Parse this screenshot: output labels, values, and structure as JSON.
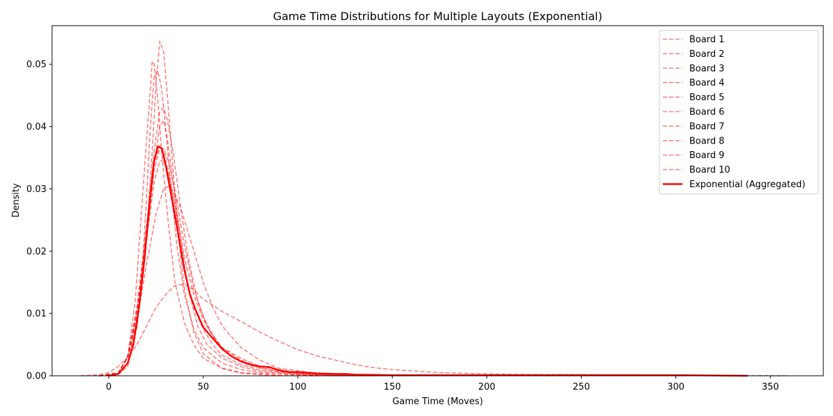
{
  "chart_data": {
    "type": "line",
    "title": "Game Time Distributions for Multiple Layouts (Exponential)",
    "xlabel": "Game Time (Moves)",
    "ylabel": "Density",
    "xlim": [
      -30,
      378
    ],
    "ylim": [
      0,
      0.0562
    ],
    "xticks": [
      0,
      50,
      100,
      150,
      200,
      250,
      300,
      350
    ],
    "yticks": [
      0.0,
      0.01,
      0.02,
      0.03,
      0.04,
      0.05
    ],
    "ytick_labels": [
      "0.00",
      "0.01",
      "0.02",
      "0.03",
      "0.04",
      "0.05"
    ],
    "grid": false,
    "legend_position": "top-right",
    "series_color": "#ff0000",
    "series": [
      {
        "name": "Board 1",
        "style": "dashed",
        "points": [
          [
            -5,
            0
          ],
          [
            5,
            0.0003
          ],
          [
            10,
            0.002
          ],
          [
            15,
            0.008
          ],
          [
            18,
            0.018
          ],
          [
            20,
            0.029
          ],
          [
            22,
            0.04
          ],
          [
            24,
            0.048
          ],
          [
            26,
            0.049
          ],
          [
            28,
            0.046
          ],
          [
            30,
            0.04
          ],
          [
            33,
            0.03
          ],
          [
            36,
            0.021
          ],
          [
            40,
            0.013
          ],
          [
            45,
            0.0075
          ],
          [
            50,
            0.0045
          ],
          [
            60,
            0.002
          ],
          [
            70,
            0.001
          ],
          [
            80,
            0.0005
          ],
          [
            100,
            0.0002
          ],
          [
            125,
            0
          ]
        ]
      },
      {
        "name": "Board 2",
        "style": "dashed",
        "points": [
          [
            -5,
            0
          ],
          [
            5,
            0.0003
          ],
          [
            10,
            0.003
          ],
          [
            14,
            0.012
          ],
          [
            17,
            0.025
          ],
          [
            20,
            0.038
          ],
          [
            22,
            0.046
          ],
          [
            23,
            0.0505
          ],
          [
            24,
            0.05
          ],
          [
            26,
            0.044
          ],
          [
            28,
            0.036
          ],
          [
            31,
            0.026
          ],
          [
            35,
            0.015
          ],
          [
            40,
            0.0085
          ],
          [
            45,
            0.005
          ],
          [
            50,
            0.0028
          ],
          [
            60,
            0.0012
          ],
          [
            70,
            0.0005
          ],
          [
            90,
            0.0001
          ],
          [
            110,
            0
          ]
        ]
      },
      {
        "name": "Board 3",
        "style": "dashed",
        "points": [
          [
            -5,
            0
          ],
          [
            5,
            0.0002
          ],
          [
            10,
            0.0015
          ],
          [
            15,
            0.008
          ],
          [
            20,
            0.023
          ],
          [
            23,
            0.036
          ],
          [
            25,
            0.047
          ],
          [
            27,
            0.0537
          ],
          [
            29,
            0.052
          ],
          [
            31,
            0.045
          ],
          [
            34,
            0.033
          ],
          [
            37,
            0.022
          ],
          [
            40,
            0.014
          ],
          [
            45,
            0.007
          ],
          [
            50,
            0.0035
          ],
          [
            60,
            0.0012
          ],
          [
            70,
            0.0004
          ],
          [
            90,
            0
          ]
        ]
      },
      {
        "name": "Board 4",
        "style": "dashed",
        "points": [
          [
            -5,
            0
          ],
          [
            5,
            0.0003
          ],
          [
            10,
            0.002
          ],
          [
            15,
            0.009
          ],
          [
            20,
            0.022
          ],
          [
            24,
            0.034
          ],
          [
            27,
            0.04
          ],
          [
            29,
            0.041
          ],
          [
            31,
            0.038
          ],
          [
            34,
            0.031
          ],
          [
            38,
            0.022
          ],
          [
            42,
            0.014
          ],
          [
            47,
            0.008
          ],
          [
            52,
            0.005
          ],
          [
            60,
            0.0028
          ],
          [
            70,
            0.0015
          ],
          [
            80,
            0.0007
          ],
          [
            100,
            0.0002
          ],
          [
            120,
            0
          ]
        ]
      },
      {
        "name": "Board 5",
        "style": "dashed",
        "points": [
          [
            -5,
            0
          ],
          [
            5,
            0.0004
          ],
          [
            10,
            0.003
          ],
          [
            15,
            0.01
          ],
          [
            20,
            0.022
          ],
          [
            24,
            0.031
          ],
          [
            27,
            0.0345
          ],
          [
            29,
            0.0345
          ],
          [
            32,
            0.032
          ],
          [
            36,
            0.026
          ],
          [
            40,
            0.019
          ],
          [
            45,
            0.013
          ],
          [
            50,
            0.009
          ],
          [
            55,
            0.0065
          ],
          [
            60,
            0.0045
          ],
          [
            70,
            0.0025
          ],
          [
            80,
            0.0012
          ],
          [
            100,
            0.0004
          ],
          [
            130,
            0
          ]
        ]
      },
      {
        "name": "Board 6",
        "style": "dashed",
        "points": [
          [
            -5,
            0
          ],
          [
            5,
            0.0005
          ],
          [
            10,
            0.003
          ],
          [
            15,
            0.011
          ],
          [
            20,
            0.024
          ],
          [
            24,
            0.036
          ],
          [
            27,
            0.0425
          ],
          [
            29,
            0.043
          ],
          [
            31,
            0.041
          ],
          [
            34,
            0.036
          ],
          [
            38,
            0.027
          ],
          [
            42,
            0.019
          ],
          [
            47,
            0.012
          ],
          [
            52,
            0.008
          ],
          [
            58,
            0.005
          ],
          [
            65,
            0.003
          ],
          [
            75,
            0.0016
          ],
          [
            90,
            0.0007
          ],
          [
            110,
            0.0002
          ],
          [
            140,
            0
          ]
        ]
      },
      {
        "name": "Board 7",
        "style": "dashed",
        "points": [
          [
            -5,
            0
          ],
          [
            5,
            0.0004
          ],
          [
            10,
            0.003
          ],
          [
            15,
            0.01
          ],
          [
            20,
            0.022
          ],
          [
            24,
            0.033
          ],
          [
            27,
            0.0365
          ],
          [
            29,
            0.0365
          ],
          [
            32,
            0.034
          ],
          [
            36,
            0.028
          ],
          [
            40,
            0.021
          ],
          [
            45,
            0.014
          ],
          [
            50,
            0.0095
          ],
          [
            55,
            0.0065
          ],
          [
            60,
            0.0045
          ],
          [
            70,
            0.0028
          ],
          [
            80,
            0.0015
          ],
          [
            100,
            0.0005
          ],
          [
            130,
            0.0001
          ],
          [
            160,
            0
          ]
        ]
      },
      {
        "name": "Board 8",
        "style": "dashed",
        "points": [
          [
            -5,
            0
          ],
          [
            5,
            0.0004
          ],
          [
            10,
            0.003
          ],
          [
            15,
            0.009
          ],
          [
            20,
            0.018
          ],
          [
            25,
            0.026
          ],
          [
            29,
            0.03
          ],
          [
            32,
            0.0305
          ],
          [
            35,
            0.029
          ],
          [
            38,
            0.027
          ],
          [
            42,
            0.023
          ],
          [
            46,
            0.019
          ],
          [
            50,
            0.015
          ],
          [
            55,
            0.011
          ],
          [
            60,
            0.008
          ],
          [
            70,
            0.0045
          ],
          [
            80,
            0.0025
          ],
          [
            90,
            0.0012
          ],
          [
            110,
            0.0004
          ],
          [
            140,
            0
          ]
        ]
      },
      {
        "name": "Board 9",
        "style": "dashed",
        "points": [
          [
            -5,
            0
          ],
          [
            5,
            0.0003
          ],
          [
            10,
            0.003
          ],
          [
            15,
            0.011
          ],
          [
            20,
            0.024
          ],
          [
            24,
            0.034
          ],
          [
            27,
            0.037
          ],
          [
            29,
            0.036
          ],
          [
            32,
            0.032
          ],
          [
            36,
            0.025
          ],
          [
            40,
            0.017
          ],
          [
            45,
            0.011
          ],
          [
            50,
            0.0075
          ],
          [
            55,
            0.005
          ],
          [
            60,
            0.0033
          ],
          [
            70,
            0.0018
          ],
          [
            80,
            0.0009
          ],
          [
            100,
            0.0003
          ],
          [
            130,
            0
          ]
        ]
      },
      {
        "name": "Board 10",
        "style": "dashed",
        "points": [
          [
            -15,
            0
          ],
          [
            -5,
            0.0002
          ],
          [
            0,
            0.0005
          ],
          [
            5,
            0.0015
          ],
          [
            10,
            0.003
          ],
          [
            15,
            0.005
          ],
          [
            20,
            0.008
          ],
          [
            25,
            0.011
          ],
          [
            30,
            0.013
          ],
          [
            35,
            0.0145
          ],
          [
            40,
            0.0147
          ],
          [
            45,
            0.0138
          ],
          [
            50,
            0.0123
          ],
          [
            60,
            0.0103
          ],
          [
            70,
            0.0087
          ],
          [
            80,
            0.007
          ],
          [
            90,
            0.0055
          ],
          [
            100,
            0.0042
          ],
          [
            110,
            0.0032
          ],
          [
            120,
            0.0025
          ],
          [
            130,
            0.0018
          ],
          [
            140,
            0.0013
          ],
          [
            150,
            0.001
          ],
          [
            175,
            0.0005
          ],
          [
            200,
            0.0003
          ],
          [
            225,
            0.0002
          ],
          [
            250,
            0.0002
          ],
          [
            300,
            0.0001
          ],
          [
            358,
            0
          ]
        ]
      },
      {
        "name": "Exponential (Aggregated)",
        "style": "solid",
        "points": [
          [
            0,
            0
          ],
          [
            5,
            0.0003
          ],
          [
            10,
            0.002
          ],
          [
            13,
            0.005
          ],
          [
            16,
            0.011
          ],
          [
            19,
            0.019
          ],
          [
            22,
            0.029
          ],
          [
            24,
            0.0345
          ],
          [
            26,
            0.0368
          ],
          [
            28,
            0.0365
          ],
          [
            30,
            0.034
          ],
          [
            33,
            0.029
          ],
          [
            36,
            0.024
          ],
          [
            40,
            0.017
          ],
          [
            43,
            0.013
          ],
          [
            46,
            0.0105
          ],
          [
            50,
            0.0078
          ],
          [
            55,
            0.006
          ],
          [
            60,
            0.0043
          ],
          [
            65,
            0.0031
          ],
          [
            70,
            0.0023
          ],
          [
            75,
            0.0018
          ],
          [
            80,
            0.0015
          ],
          [
            85,
            0.0014
          ],
          [
            90,
            0.0009
          ],
          [
            95,
            0.0006
          ],
          [
            100,
            0.0006
          ],
          [
            110,
            0.0004
          ],
          [
            120,
            0.0003
          ],
          [
            125,
            0.0003
          ],
          [
            130,
            0.0002
          ],
          [
            150,
            0.0001
          ],
          [
            200,
            0.0001
          ],
          [
            250,
            0.0001
          ],
          [
            300,
            0.0001
          ],
          [
            338,
            0
          ]
        ]
      }
    ]
  }
}
